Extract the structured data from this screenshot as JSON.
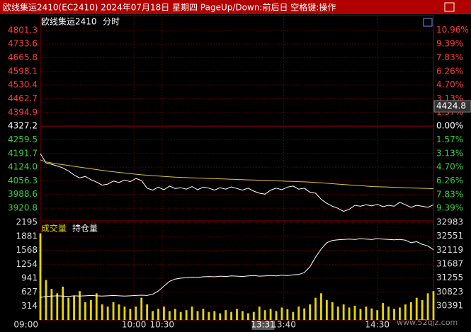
{
  "title_bar": "欧线集运2410(EC2410) 2024年07月18日 星期四 PageUp/Down:前后日 空格键:操作",
  "watermark": "www.52qjz.com",
  "chart_data": [
    {
      "type": "line",
      "title": "欧线集运2410",
      "subtitle": "分时",
      "x": [
        0,
        3,
        6,
        9,
        12,
        15,
        18,
        21,
        24,
        27,
        30,
        33,
        36,
        39,
        42,
        45,
        48,
        51,
        54,
        57,
        60,
        63,
        66,
        69,
        72,
        75,
        78,
        81,
        84,
        87,
        90,
        93,
        96,
        99,
        102,
        105,
        108,
        111,
        114,
        117,
        120,
        123,
        126,
        129,
        132,
        135,
        138,
        141,
        144,
        147,
        150,
        153,
        156,
        159,
        162,
        165,
        168,
        171,
        174,
        177,
        180,
        183,
        186,
        189,
        192,
        195,
        198,
        201,
        204,
        207,
        210
      ],
      "xlim": [
        0,
        210
      ],
      "ylim": [
        3858,
        4874
      ],
      "yticks": [
        4801.3,
        4733.6,
        4665.8,
        4598.1,
        4530.4,
        4462.7,
        4394.9,
        4327.2,
        4259.5,
        4191.7,
        {
          "value": 4124,
          "label": "4124.0"
        },
        4056.3,
        3988.6,
        3920.8
      ],
      "y2lim": [
        -10.84,
        12.64
      ],
      "y2ticks": [
        {
          "value": 10.96,
          "label": "10.96%"
        },
        {
          "value": 9.39,
          "label": "9.39%"
        },
        {
          "value": 7.83,
          "label": "7.83%"
        },
        {
          "value": 6.26,
          "label": "6.26%"
        },
        {
          "value": 4.7,
          "label": "4.70%"
        },
        {
          "value": 3.13,
          "label": "3.13%"
        },
        {
          "value": 1.57,
          "label": "1.57%"
        },
        {
          "value": 0,
          "label": "0.00%"
        },
        {
          "value": -1.57,
          "label": "1.57%"
        },
        {
          "value": -3.13,
          "label": "3.13%"
        },
        {
          "value": -4.7,
          "label": "4.70%"
        },
        {
          "value": -6.26,
          "label": "6.26%"
        },
        {
          "value": -7.83,
          "label": "7.83%"
        },
        {
          "value": -9.39,
          "label": "9.39%"
        }
      ],
      "grid": true,
      "cursor_price": 4424.8,
      "series": [
        {
          "color": "#ffffff",
          "values": [
            4191,
            4145,
            4138,
            4130,
            4120,
            4105,
            4085,
            4070,
            4078,
            4062,
            4050,
            4035,
            4040,
            4055,
            4048,
            4060,
            4052,
            4068,
            4058,
            4020,
            4010,
            4025,
            4012,
            4030,
            4018,
            4022,
            4015,
            4028,
            4012,
            4025,
            4020,
            4010,
            4022,
            4015,
            4026,
            4018,
            4010,
            4020,
            4005,
            3995,
            3990,
            4010,
            4020,
            4012,
            4025,
            4030,
            4015,
            4020,
            4000,
            3995,
            3965,
            3945,
            3930,
            3920,
            3905,
            3915,
            3935,
            3930,
            3938,
            3932,
            3940,
            3928,
            3935,
            3930,
            3950,
            3938,
            3925,
            3935,
            3930,
            3925,
            3938
          ]
        },
        {
          "color": "#d8c83a",
          "values": [
            4160,
            4150,
            4145,
            4140,
            4136,
            4132,
            4128,
            4124,
            4120,
            4116,
            4112,
            4108,
            4104,
            4101,
            4098,
            4095,
            4092,
            4089,
            4086,
            4084,
            4082,
            4080,
            4078,
            4076,
            4074,
            4073,
            4072,
            4071,
            4070,
            4069,
            4068,
            4067,
            4066,
            4065,
            4064,
            4063,
            4062,
            4061,
            4060,
            4059,
            4058,
            4057,
            4056,
            4055,
            4054,
            4053,
            4052,
            4051,
            4050,
            4048,
            4046,
            4044,
            4042,
            4040,
            4038,
            4036,
            4034,
            4032,
            4030,
            4028,
            4027,
            4026,
            4025,
            4024,
            4023,
            4022,
            4021,
            4020,
            4019,
            4018,
            4017
          ]
        }
      ]
    },
    {
      "type": "bar",
      "x": [
        0,
        3,
        6,
        9,
        12,
        15,
        18,
        21,
        24,
        27,
        30,
        33,
        36,
        39,
        42,
        45,
        48,
        51,
        54,
        57,
        60,
        63,
        66,
        69,
        72,
        75,
        78,
        81,
        84,
        87,
        90,
        93,
        96,
        99,
        102,
        105,
        108,
        111,
        114,
        117,
        120,
        123,
        126,
        129,
        132,
        135,
        138,
        141,
        144,
        147,
        150,
        153,
        156,
        159,
        162,
        165,
        168,
        171,
        174,
        177,
        180,
        183,
        186,
        189,
        192,
        195,
        198,
        201,
        204,
        207,
        210
      ],
      "xlim": [
        0,
        210
      ],
      "xticks": [
        {
          "value": 0,
          "label": "09:00"
        },
        {
          "value": 50,
          "label": "10:00"
        },
        {
          "value": 65,
          "label": "10:30"
        },
        {
          "value": 130,
          "label": "13:40"
        },
        {
          "value": 180,
          "label": "14:30"
        }
      ],
      "cursor_time": {
        "value": 119,
        "label": "13:31"
      },
      "ylim": [
        0,
        2230
      ],
      "yticks": [
        2195,
        1881,
        1568,
        1254,
        941,
        627,
        314
      ],
      "y2lim": [
        29950,
        33027
      ],
      "y2ticks": [
        32983,
        32551,
        32119,
        31687,
        31255,
        30823,
        30391
      ],
      "series": [
        {
          "name": "成交量",
          "color": "#e6d600",
          "values": [
            1950,
            900,
            700,
            600,
            750,
            500,
            550,
            650,
            400,
            450,
            600,
            350,
            300,
            400,
            350,
            300,
            250,
            300,
            500,
            350,
            200,
            250,
            300,
            200,
            250,
            180,
            220,
            300,
            200,
            250,
            180,
            200,
            150,
            220,
            180,
            250,
            200,
            150,
            180,
            300,
            220,
            250,
            200,
            280,
            240,
            180,
            300,
            260,
            350,
            500,
            600,
            450,
            400,
            300,
            350,
            280,
            320,
            250,
            300,
            260,
            220,
            380,
            300,
            250,
            280,
            350,
            400,
            500,
            450,
            600,
            650
          ]
        },
        {
          "name": "持仓量",
          "type": "line",
          "axis": "y2",
          "color": "#ffffff",
          "values": [
            30650,
            30680,
            30690,
            30700,
            30690,
            30680,
            30700,
            30690,
            30700,
            30710,
            30700,
            30690,
            30700,
            30710,
            30700,
            30690,
            30700,
            30710,
            30720,
            30710,
            30750,
            30850,
            31000,
            31150,
            31220,
            31250,
            31260,
            31280,
            31270,
            31290,
            31300,
            31290,
            31310,
            31300,
            31320,
            31310,
            31300,
            31320,
            31330,
            31310,
            31320,
            31330,
            31320,
            31340,
            31330,
            31350,
            31360,
            31420,
            31600,
            31900,
            32150,
            32350,
            32420,
            32440,
            32450,
            32460,
            32450,
            32470,
            32460,
            32450,
            32470,
            32460,
            32450,
            32440,
            32450,
            32430,
            32350,
            32380,
            32300,
            32250,
            32130
          ]
        }
      ]
    }
  ]
}
